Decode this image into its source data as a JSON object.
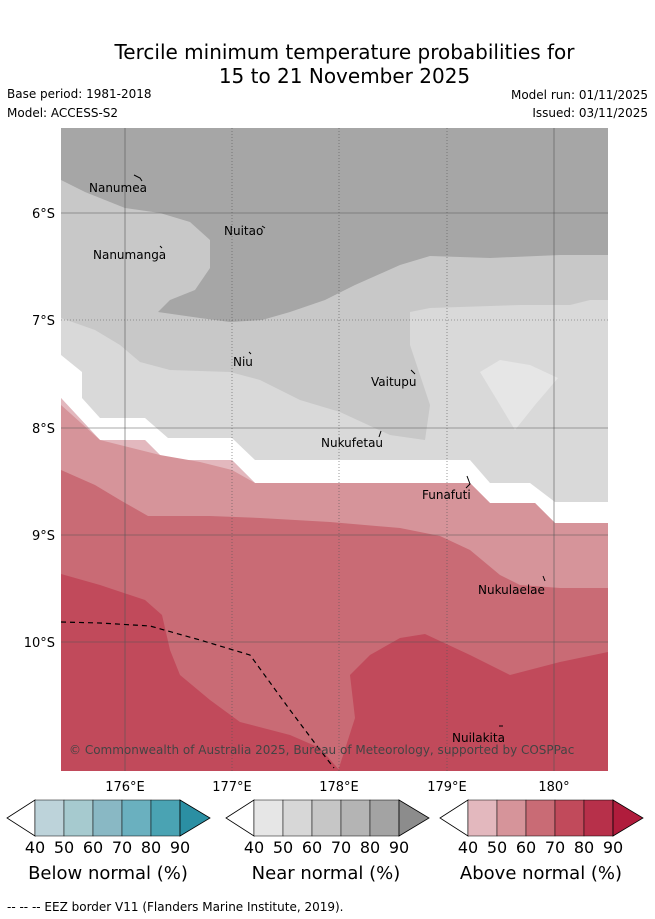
{
  "title_line1": "Tercile minimum temperature probabilities for",
  "title_line2": "15 to 21 November 2025",
  "base_period": "Base period: 1981-2018",
  "model": "Model: ACCESS-S2",
  "model_run": "Model run: 01/11/2025",
  "issued": "Issued: 03/11/2025",
  "lat_labels": [
    "6°S",
    "7°S",
    "8°S",
    "9°S",
    "10°S"
  ],
  "lon_labels": [
    "176°E",
    "177°E",
    "178°E",
    "179°E",
    "180°"
  ],
  "places": [
    {
      "name": "Nanumea"
    },
    {
      "name": "Nuitao"
    },
    {
      "name": "Nanumanga"
    },
    {
      "name": "Niu"
    },
    {
      "name": "Vaitupu"
    },
    {
      "name": "Nukufetau"
    },
    {
      "name": "Funafuti"
    },
    {
      "name": "Nukulaelae"
    },
    {
      "name": "Nuilakita"
    }
  ],
  "copyright": "© Commonwealth of Australia 2025, Bureau of Meteorology, supported by COSPPac",
  "legend": {
    "ticks": [
      "40",
      "50",
      "60",
      "70",
      "80",
      "90"
    ],
    "below": {
      "title": "Below normal (%)",
      "colors": [
        "#bdd3da",
        "#a6cacf",
        "#89b8c4",
        "#6ab0bf",
        "#4aa3b3",
        "#2b8fa3"
      ]
    },
    "near": {
      "title": "Near normal (%)",
      "colors": [
        "#e6e6e6",
        "#d7d7d7",
        "#c6c6c6",
        "#b4b4b4",
        "#a3a3a3",
        "#8c8c8c"
      ]
    },
    "above": {
      "title": "Above normal (%)",
      "colors": [
        "#e3b8be",
        "#d6949a",
        "#c96b75",
        "#c14a5b",
        "#b7304a",
        "#b01c3c"
      ]
    }
  },
  "footnote": "--  --  -- EEZ border V11 (Flanders Marine Institute, 2019)."
}
